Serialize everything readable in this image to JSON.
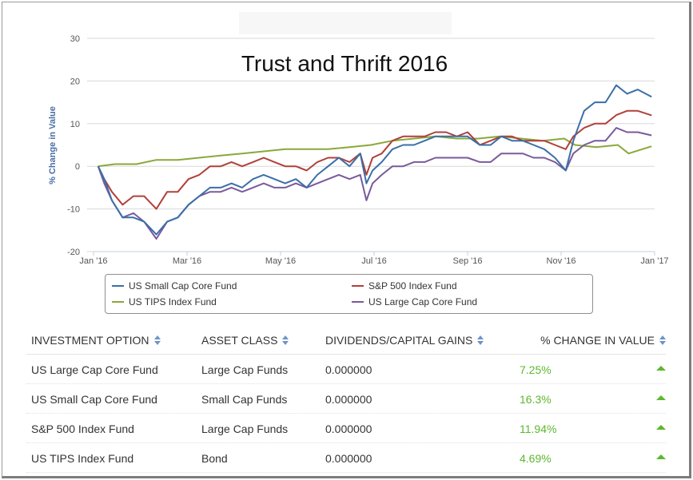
{
  "chart_data": {
    "type": "line",
    "title": "Trust and Thrift 2016",
    "xlabel": "",
    "ylabel": "% Change in Value",
    "x_ticks": [
      "Jan '16",
      "Mar '16",
      "May '16",
      "Jul '16",
      "Sep '16",
      "Nov '16",
      "Jan '17"
    ],
    "y_ticks": [
      -20,
      -10,
      0,
      10,
      20,
      30
    ],
    "ylim": [
      -20,
      30
    ],
    "xlim": [
      "2016-01-01",
      "2017-01-01"
    ],
    "grid": true,
    "legend_position": "bottom",
    "series": [
      {
        "name": "US Small Cap Core Fund",
        "color": "#3a6fa8",
        "points": [
          [
            "2016-01-04",
            0
          ],
          [
            "2016-01-08",
            -3
          ],
          [
            "2016-01-13",
            -8
          ],
          [
            "2016-01-20",
            -12
          ],
          [
            "2016-01-27",
            -12
          ],
          [
            "2016-02-03",
            -13
          ],
          [
            "2016-02-11",
            -16
          ],
          [
            "2016-02-18",
            -13
          ],
          [
            "2016-02-25",
            -12
          ],
          [
            "2016-03-03",
            -9
          ],
          [
            "2016-03-10",
            -7
          ],
          [
            "2016-03-17",
            -5
          ],
          [
            "2016-03-24",
            -5
          ],
          [
            "2016-03-31",
            -4
          ],
          [
            "2016-04-07",
            -5
          ],
          [
            "2016-04-14",
            -3
          ],
          [
            "2016-04-21",
            -2
          ],
          [
            "2016-04-28",
            -3
          ],
          [
            "2016-05-05",
            -4
          ],
          [
            "2016-05-12",
            -3
          ],
          [
            "2016-05-19",
            -5
          ],
          [
            "2016-05-26",
            -2
          ],
          [
            "2016-06-02",
            0
          ],
          [
            "2016-06-09",
            2
          ],
          [
            "2016-06-16",
            0
          ],
          [
            "2016-06-23",
            3
          ],
          [
            "2016-06-27",
            -4
          ],
          [
            "2016-07-01",
            -1
          ],
          [
            "2016-07-07",
            1
          ],
          [
            "2016-07-14",
            4
          ],
          [
            "2016-07-21",
            5
          ],
          [
            "2016-07-28",
            5
          ],
          [
            "2016-08-04",
            6
          ],
          [
            "2016-08-11",
            7
          ],
          [
            "2016-08-18",
            7
          ],
          [
            "2016-08-25",
            7
          ],
          [
            "2016-09-01",
            7
          ],
          [
            "2016-09-09",
            5
          ],
          [
            "2016-09-16",
            5
          ],
          [
            "2016-09-23",
            7
          ],
          [
            "2016-09-30",
            6
          ],
          [
            "2016-10-07",
            6
          ],
          [
            "2016-10-14",
            5
          ],
          [
            "2016-10-21",
            4
          ],
          [
            "2016-10-28",
            2
          ],
          [
            "2016-11-04",
            -1
          ],
          [
            "2016-11-09",
            6
          ],
          [
            "2016-11-16",
            13
          ],
          [
            "2016-11-23",
            15
          ],
          [
            "2016-11-30",
            15
          ],
          [
            "2016-12-07",
            19
          ],
          [
            "2016-12-14",
            17
          ],
          [
            "2016-12-21",
            18
          ],
          [
            "2016-12-30",
            16.3
          ]
        ]
      },
      {
        "name": "S&P 500 Index Fund",
        "color": "#b0403a",
        "points": [
          [
            "2016-01-04",
            0
          ],
          [
            "2016-01-08",
            -3
          ],
          [
            "2016-01-13",
            -6
          ],
          [
            "2016-01-20",
            -9
          ],
          [
            "2016-01-27",
            -7
          ],
          [
            "2016-02-03",
            -7
          ],
          [
            "2016-02-11",
            -10
          ],
          [
            "2016-02-18",
            -6
          ],
          [
            "2016-02-25",
            -6
          ],
          [
            "2016-03-03",
            -3
          ],
          [
            "2016-03-10",
            -2
          ],
          [
            "2016-03-17",
            0
          ],
          [
            "2016-03-24",
            0
          ],
          [
            "2016-03-31",
            1
          ],
          [
            "2016-04-07",
            0
          ],
          [
            "2016-04-14",
            1
          ],
          [
            "2016-04-21",
            2
          ],
          [
            "2016-04-28",
            1
          ],
          [
            "2016-05-05",
            0
          ],
          [
            "2016-05-12",
            0
          ],
          [
            "2016-05-19",
            -1
          ],
          [
            "2016-05-26",
            1
          ],
          [
            "2016-06-02",
            2
          ],
          [
            "2016-06-09",
            2
          ],
          [
            "2016-06-16",
            1
          ],
          [
            "2016-06-23",
            3
          ],
          [
            "2016-06-27",
            -2
          ],
          [
            "2016-07-01",
            2
          ],
          [
            "2016-07-07",
            3
          ],
          [
            "2016-07-14",
            6
          ],
          [
            "2016-07-21",
            7
          ],
          [
            "2016-07-28",
            7
          ],
          [
            "2016-08-04",
            7
          ],
          [
            "2016-08-11",
            8
          ],
          [
            "2016-08-18",
            8
          ],
          [
            "2016-08-25",
            7
          ],
          [
            "2016-09-01",
            8
          ],
          [
            "2016-09-09",
            5
          ],
          [
            "2016-09-16",
            6
          ],
          [
            "2016-09-23",
            7
          ],
          [
            "2016-09-30",
            7
          ],
          [
            "2016-10-07",
            6
          ],
          [
            "2016-10-14",
            6
          ],
          [
            "2016-10-21",
            6
          ],
          [
            "2016-10-28",
            5
          ],
          [
            "2016-11-04",
            4
          ],
          [
            "2016-11-09",
            7
          ],
          [
            "2016-11-16",
            9
          ],
          [
            "2016-11-23",
            10
          ],
          [
            "2016-11-30",
            10
          ],
          [
            "2016-12-07",
            12
          ],
          [
            "2016-12-14",
            13
          ],
          [
            "2016-12-21",
            13
          ],
          [
            "2016-12-30",
            11.94
          ]
        ]
      },
      {
        "name": "US TIPS Index Fund",
        "color": "#8aa83a",
        "points": [
          [
            "2016-01-04",
            0
          ],
          [
            "2016-01-15",
            0.5
          ],
          [
            "2016-01-29",
            0.5
          ],
          [
            "2016-02-11",
            1.5
          ],
          [
            "2016-02-25",
            1.5
          ],
          [
            "2016-03-10",
            2
          ],
          [
            "2016-03-24",
            2.5
          ],
          [
            "2016-04-07",
            3
          ],
          [
            "2016-04-21",
            3.5
          ],
          [
            "2016-05-05",
            4
          ],
          [
            "2016-05-19",
            4
          ],
          [
            "2016-06-02",
            4
          ],
          [
            "2016-06-16",
            4.5
          ],
          [
            "2016-06-30",
            5
          ],
          [
            "2016-07-14",
            6
          ],
          [
            "2016-07-28",
            6.5
          ],
          [
            "2016-08-11",
            7
          ],
          [
            "2016-08-25",
            6.5
          ],
          [
            "2016-09-08",
            6.5
          ],
          [
            "2016-09-22",
            7
          ],
          [
            "2016-10-06",
            6.5
          ],
          [
            "2016-10-20",
            6
          ],
          [
            "2016-11-03",
            6.5
          ],
          [
            "2016-11-10",
            5
          ],
          [
            "2016-11-24",
            4.5
          ],
          [
            "2016-12-08",
            5
          ],
          [
            "2016-12-15",
            3
          ],
          [
            "2016-12-30",
            4.69
          ]
        ]
      },
      {
        "name": "US Large Cap Core Fund",
        "color": "#7a5a9c",
        "points": [
          [
            "2016-01-04",
            0
          ],
          [
            "2016-01-08",
            -4
          ],
          [
            "2016-01-13",
            -8
          ],
          [
            "2016-01-20",
            -12
          ],
          [
            "2016-01-27",
            -11
          ],
          [
            "2016-02-03",
            -13
          ],
          [
            "2016-02-11",
            -17
          ],
          [
            "2016-02-18",
            -13
          ],
          [
            "2016-02-25",
            -12
          ],
          [
            "2016-03-03",
            -9
          ],
          [
            "2016-03-10",
            -7
          ],
          [
            "2016-03-17",
            -6
          ],
          [
            "2016-03-24",
            -6
          ],
          [
            "2016-03-31",
            -5
          ],
          [
            "2016-04-07",
            -6
          ],
          [
            "2016-04-14",
            -5
          ],
          [
            "2016-04-21",
            -4
          ],
          [
            "2016-04-28",
            -5
          ],
          [
            "2016-05-05",
            -5
          ],
          [
            "2016-05-12",
            -4
          ],
          [
            "2016-05-19",
            -5
          ],
          [
            "2016-05-26",
            -4
          ],
          [
            "2016-06-02",
            -3
          ],
          [
            "2016-06-09",
            -2
          ],
          [
            "2016-06-16",
            -3
          ],
          [
            "2016-06-23",
            -2
          ],
          [
            "2016-06-27",
            -8
          ],
          [
            "2016-07-01",
            -4
          ],
          [
            "2016-07-07",
            -2
          ],
          [
            "2016-07-14",
            0
          ],
          [
            "2016-07-21",
            0
          ],
          [
            "2016-07-28",
            1
          ],
          [
            "2016-08-04",
            1
          ],
          [
            "2016-08-11",
            2
          ],
          [
            "2016-08-18",
            2
          ],
          [
            "2016-08-25",
            2
          ],
          [
            "2016-09-01",
            2
          ],
          [
            "2016-09-09",
            1
          ],
          [
            "2016-09-16",
            1
          ],
          [
            "2016-09-23",
            3
          ],
          [
            "2016-09-30",
            3
          ],
          [
            "2016-10-07",
            3
          ],
          [
            "2016-10-14",
            2
          ],
          [
            "2016-10-21",
            2
          ],
          [
            "2016-10-28",
            1
          ],
          [
            "2016-11-04",
            -1
          ],
          [
            "2016-11-09",
            3
          ],
          [
            "2016-11-16",
            5
          ],
          [
            "2016-11-23",
            6
          ],
          [
            "2016-11-30",
            6
          ],
          [
            "2016-12-07",
            9
          ],
          [
            "2016-12-14",
            8
          ],
          [
            "2016-12-21",
            8
          ],
          [
            "2016-12-30",
            7.25
          ]
        ]
      }
    ]
  },
  "table": {
    "headers": {
      "investment_option": "INVESTMENT OPTION",
      "asset_class": "ASSET CLASS",
      "dividends": "DIVIDENDS/CAPITAL GAINS",
      "change": "% CHANGE IN VALUE"
    },
    "rows": [
      {
        "option": "US Large Cap Core Fund",
        "asset_class": "Large Cap Funds",
        "dividends": "0.000000",
        "change": "7.25%"
      },
      {
        "option": "US Small Cap Core Fund",
        "asset_class": "Small Cap Funds",
        "dividends": "0.000000",
        "change": "16.3%"
      },
      {
        "option": "S&P 500 Index Fund",
        "asset_class": "Large Cap Funds",
        "dividends": "0.000000",
        "change": "11.94%"
      },
      {
        "option": "US TIPS Index Fund",
        "asset_class": "Bond",
        "dividends": "0.000000",
        "change": "4.69%"
      }
    ]
  },
  "colors": {
    "positive": "#5cb82e",
    "axis_label": "#4a6fa5",
    "grid": "#d8d8d8"
  }
}
